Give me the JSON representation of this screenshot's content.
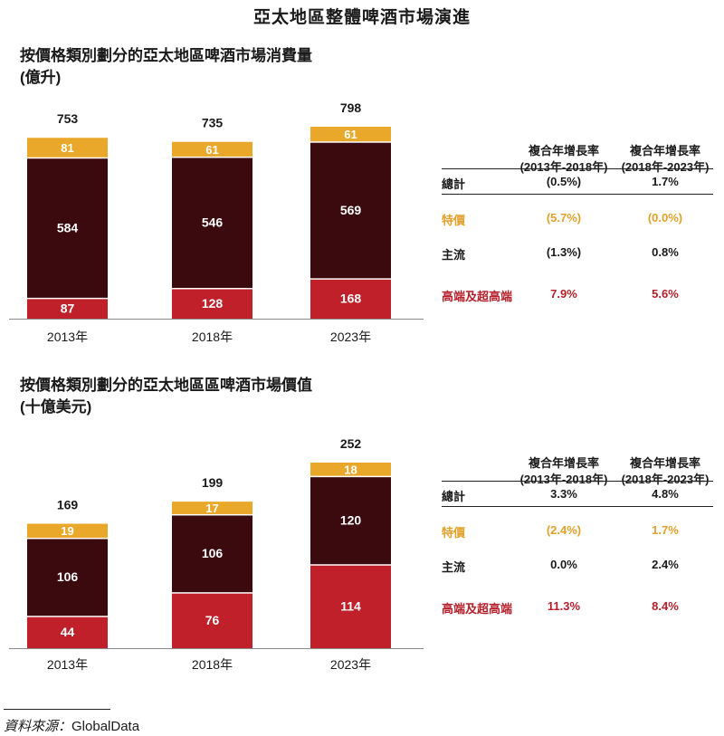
{
  "title": "亞太地區整體啤酒市場演進",
  "colors": {
    "premium": "#c0202a",
    "mainstream": "#3b0a0e",
    "value": "#e9a82a",
    "value_text": "#e3a02a",
    "premium_text": "#b5202a",
    "default_text": "#1a1a1a"
  },
  "charts": [
    {
      "subtitle_line1": "按價格類別劃分的亞太地區啤酒市場消費量",
      "subtitle_line2": "(億升)",
      "table": {
        "col1_header_line1": "複合年增長率",
        "col1_header_line2": "(2013年-2018年)",
        "col2_header_line1": "複合年增長率",
        "col2_header_line2": "(2018年-2023年)",
        "rows": [
          {
            "label": "總計",
            "v1": "(0.5%)",
            "v2": "1.7%",
            "style": "default"
          },
          {
            "label": "特價",
            "v1": "(5.7%)",
            "v2": "(0.0%)",
            "style": "value"
          },
          {
            "label": "主流",
            "v1": "(1.3%)",
            "v2": "0.8%",
            "style": "default"
          },
          {
            "label": "高端及超高端",
            "v1": "7.9%",
            "v2": "5.6%",
            "style": "premium"
          }
        ]
      }
    },
    {
      "subtitle_line1": "按價格類別劃分的亞太地區區啤酒市場價值",
      "subtitle_line2": "(十億美元)",
      "table": {
        "col1_header_line1": "複合年增長率",
        "col1_header_line2": "(2013年-2018年)",
        "col2_header_line1": "複合年增長率",
        "col2_header_line2": "(2018年-2023年)",
        "rows": [
          {
            "label": "總計",
            "v1": "3.3%",
            "v2": "4.8%",
            "style": "default"
          },
          {
            "label": "特價",
            "v1": "(2.4%)",
            "v2": "1.7%",
            "style": "value"
          },
          {
            "label": "主流",
            "v1": "0.0%",
            "v2": "2.4%",
            "style": "default"
          },
          {
            "label": "高端及超高端",
            "v1": "11.3%",
            "v2": "8.4%",
            "style": "premium"
          }
        ]
      }
    }
  ],
  "chart_data": [
    {
      "type": "bar",
      "stacked": true,
      "title": "按價格類別劃分的亞太地區啤酒市場消費量",
      "unit": "(億升)",
      "categories": [
        "2013年",
        "2018年",
        "2023年"
      ],
      "series": [
        {
          "key": "premium",
          "values": [
            87,
            128,
            168
          ]
        },
        {
          "key": "mainstream",
          "values": [
            584,
            546,
            569
          ]
        },
        {
          "key": "value",
          "values": [
            81,
            61,
            61
          ]
        }
      ],
      "totals": [
        753,
        735,
        798
      ],
      "ylim": [
        0,
        798
      ],
      "grid": false,
      "legend": "none"
    },
    {
      "type": "bar",
      "stacked": true,
      "title": "按價格類別劃分的亞太地區區啤酒市場價值",
      "unit": "(十億美元)",
      "categories": [
        "2013年",
        "2018年",
        "2023年"
      ],
      "series": [
        {
          "key": "premium",
          "values": [
            44,
            76,
            114
          ]
        },
        {
          "key": "mainstream",
          "values": [
            106,
            106,
            120
          ]
        },
        {
          "key": "value",
          "values": [
            19,
            17,
            18
          ]
        }
      ],
      "totals": [
        169,
        199,
        252
      ],
      "ylim": [
        0,
        252
      ],
      "grid": false,
      "legend": "none"
    }
  ],
  "source": {
    "label": "資料來源：",
    "value": "GlobalData"
  }
}
